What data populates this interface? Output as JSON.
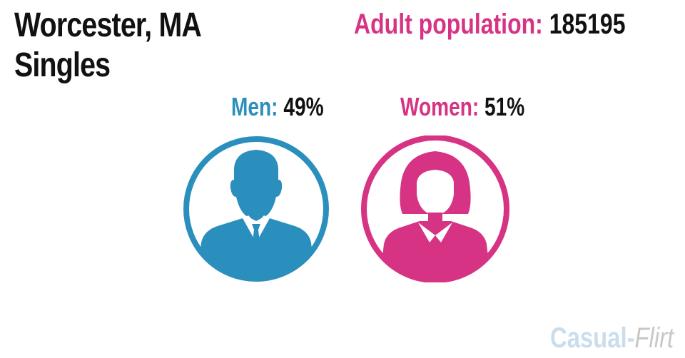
{
  "title": {
    "line1": "Worcester, MA",
    "line2": "Singles"
  },
  "population": {
    "label": "Adult population:",
    "value": "185195"
  },
  "men": {
    "label": "Men:",
    "value": "49%",
    "icon": "man-icon",
    "color": "#2b8fbd"
  },
  "women": {
    "label": "Women:",
    "value": "51%",
    "icon": "woman-icon",
    "color": "#d63384"
  },
  "logo": {
    "part1": "Casual",
    "dash": "-",
    "part2": "Flirt"
  }
}
